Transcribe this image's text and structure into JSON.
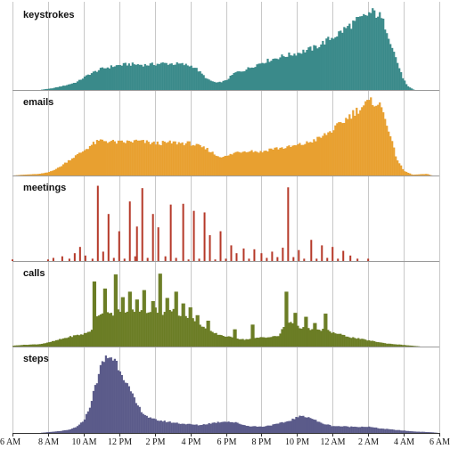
{
  "chart_data": {
    "type": "bar",
    "title": "",
    "xlabel": "",
    "ylabel": "",
    "grid": true,
    "x_unit": "hour_since_6am",
    "xlim": [
      0,
      24
    ],
    "x_tick_labels": [
      "6 AM",
      "8 AM",
      "10 AM",
      "12 PM",
      "2 PM",
      "4 PM",
      "6 PM",
      "8 PM",
      "10 PM",
      "12 AM",
      "2 AM",
      "4 AM",
      "6 AM"
    ],
    "panels": [
      {
        "name": "keystrokes",
        "color": "#3a8a8a",
        "ylim": [
          0,
          100
        ],
        "profile": [
          [
            0,
            0
          ],
          [
            1.5,
            0
          ],
          [
            2.2,
            2
          ],
          [
            3,
            6
          ],
          [
            3.6,
            10
          ],
          [
            4.3,
            20
          ],
          [
            5,
            27
          ],
          [
            5.8,
            31
          ],
          [
            6.5,
            33
          ],
          [
            7.5,
            32
          ],
          [
            8.5,
            34
          ],
          [
            9.5,
            33
          ],
          [
            10.2,
            30
          ],
          [
            11,
            13
          ],
          [
            11.5,
            9
          ],
          [
            12,
            12
          ],
          [
            12.5,
            22
          ],
          [
            13,
            25
          ],
          [
            14,
            35
          ],
          [
            15,
            42
          ],
          [
            16,
            47
          ],
          [
            17,
            54
          ],
          [
            17.6,
            62
          ],
          [
            18.2,
            70
          ],
          [
            18.7,
            78
          ],
          [
            19.2,
            86
          ],
          [
            19.7,
            92
          ],
          [
            20,
            97
          ],
          [
            20.3,
            99
          ],
          [
            20.6,
            96
          ],
          [
            21,
            80
          ],
          [
            21.5,
            45
          ],
          [
            21.9,
            18
          ],
          [
            22.2,
            5
          ],
          [
            22.6,
            0
          ],
          [
            24,
            0
          ]
        ]
      },
      {
        "name": "emails",
        "color": "#e8a030",
        "ylim": [
          0,
          100
        ],
        "profile": [
          [
            0,
            0
          ],
          [
            0.6,
            1
          ],
          [
            1.5,
            2
          ],
          [
            2,
            4
          ],
          [
            2.6,
            10
          ],
          [
            3.2,
            20
          ],
          [
            3.9,
            30
          ],
          [
            4.5,
            40
          ],
          [
            5,
            45
          ],
          [
            6,
            42
          ],
          [
            7,
            44
          ],
          [
            8,
            41
          ],
          [
            9,
            42
          ],
          [
            10,
            41
          ],
          [
            11,
            33
          ],
          [
            11.5,
            25
          ],
          [
            12,
            24
          ],
          [
            12.6,
            30
          ],
          [
            13.3,
            32
          ],
          [
            14,
            30
          ],
          [
            14.5,
            34
          ],
          [
            15.5,
            36
          ],
          [
            16.5,
            41
          ],
          [
            17.3,
            48
          ],
          [
            18,
            58
          ],
          [
            18.5,
            67
          ],
          [
            19,
            77
          ],
          [
            19.6,
            87
          ],
          [
            20,
            93
          ],
          [
            20.4,
            94
          ],
          [
            20.7,
            88
          ],
          [
            21,
            72
          ],
          [
            21.3,
            45
          ],
          [
            21.6,
            22
          ],
          [
            22,
            6
          ],
          [
            22.5,
            1
          ],
          [
            23.3,
            2
          ],
          [
            23.6,
            0
          ],
          [
            24,
            0
          ]
        ]
      },
      {
        "name": "meetings",
        "color": "#b53828",
        "ylim": [
          0,
          100
        ],
        "values": [
          [
            0,
            2
          ],
          [
            2,
            2
          ],
          [
            2.3,
            4
          ],
          [
            2.8,
            6
          ],
          [
            3.2,
            3
          ],
          [
            3.5,
            10
          ],
          [
            3.8,
            18
          ],
          [
            4.1,
            7
          ],
          [
            4.5,
            3
          ],
          [
            4.8,
            96
          ],
          [
            5.1,
            12
          ],
          [
            5.4,
            60
          ],
          [
            5.7,
            4
          ],
          [
            6,
            38
          ],
          [
            6.3,
            3
          ],
          [
            6.6,
            76
          ],
          [
            6.9,
            6
          ],
          [
            7,
            44
          ],
          [
            7.3,
            93
          ],
          [
            7.6,
            4
          ],
          [
            7.9,
            60
          ],
          [
            8.2,
            43
          ],
          [
            8.6,
            6
          ],
          [
            8.9,
            72
          ],
          [
            9.2,
            4
          ],
          [
            9.6,
            73
          ],
          [
            9.9,
            2
          ],
          [
            10.2,
            64
          ],
          [
            10.5,
            3
          ],
          [
            10.8,
            62
          ],
          [
            11.1,
            33
          ],
          [
            11.4,
            2
          ],
          [
            11.7,
            38
          ],
          [
            12,
            3
          ],
          [
            12.3,
            20
          ],
          [
            12.6,
            10
          ],
          [
            13,
            16
          ],
          [
            13.3,
            3
          ],
          [
            13.6,
            15
          ],
          [
            14,
            10
          ],
          [
            14.3,
            4
          ],
          [
            14.6,
            12
          ],
          [
            14.9,
            5
          ],
          [
            15.2,
            17
          ],
          [
            15.5,
            94
          ],
          [
            15.8,
            5
          ],
          [
            16.1,
            14
          ],
          [
            16.4,
            3
          ],
          [
            16.8,
            27
          ],
          [
            17.1,
            3
          ],
          [
            17.4,
            20
          ],
          [
            17.7,
            4
          ],
          [
            18,
            18
          ],
          [
            18.3,
            3
          ],
          [
            18.6,
            13
          ],
          [
            19,
            7
          ],
          [
            19.4,
            3
          ],
          [
            20,
            3
          ]
        ]
      },
      {
        "name": "calls",
        "color": "#6b7d25",
        "ylim": [
          0,
          100
        ],
        "profile": [
          [
            0,
            1
          ],
          [
            0.5,
            2
          ],
          [
            1.5,
            3
          ],
          [
            2,
            5
          ],
          [
            2.8,
            10
          ],
          [
            3.5,
            14
          ],
          [
            4,
            16
          ],
          [
            4.4,
            20
          ],
          [
            4.8,
            40
          ],
          [
            5.2,
            47
          ],
          [
            5.6,
            42
          ],
          [
            6,
            45
          ],
          [
            6.5,
            42
          ],
          [
            7,
            48
          ],
          [
            7.5,
            44
          ],
          [
            8,
            48
          ],
          [
            8.5,
            42
          ],
          [
            9,
            46
          ],
          [
            9.5,
            40
          ],
          [
            10,
            38
          ],
          [
            10.5,
            30
          ],
          [
            11,
            20
          ],
          [
            11.5,
            16
          ],
          [
            12,
            13
          ],
          [
            12.5,
            11
          ],
          [
            13,
            9
          ],
          [
            13.5,
            10
          ],
          [
            14,
            12
          ],
          [
            14.5,
            12
          ],
          [
            15,
            14
          ],
          [
            15.3,
            28
          ],
          [
            15.7,
            32
          ],
          [
            16,
            25
          ],
          [
            16.5,
            24
          ],
          [
            17,
            20
          ],
          [
            17.5,
            22
          ],
          [
            18,
            18
          ],
          [
            18.5,
            15
          ],
          [
            19,
            12
          ],
          [
            19.5,
            10
          ],
          [
            20,
            8
          ],
          [
            20.5,
            6
          ],
          [
            21,
            4
          ],
          [
            21.5,
            3
          ],
          [
            22,
            2
          ],
          [
            23,
            0
          ],
          [
            24,
            0
          ]
        ],
        "spikes": [
          [
            4.6,
            83
          ],
          [
            5.2,
            74
          ],
          [
            5.8,
            92
          ],
          [
            6.2,
            63
          ],
          [
            6.6,
            70
          ],
          [
            7,
            60
          ],
          [
            7.4,
            72
          ],
          [
            7.9,
            58
          ],
          [
            8.3,
            93
          ],
          [
            8.7,
            62
          ],
          [
            9.2,
            70
          ],
          [
            9.6,
            55
          ],
          [
            10,
            50
          ],
          [
            10.4,
            40
          ],
          [
            11,
            33
          ],
          [
            12.5,
            22
          ],
          [
            13.5,
            28
          ],
          [
            15.4,
            70
          ],
          [
            15.9,
            43
          ],
          [
            16.5,
            38
          ],
          [
            17,
            30
          ],
          [
            17.6,
            42
          ]
        ]
      },
      {
        "name": "steps",
        "color": "#5b5b8a",
        "ylim": [
          0,
          100
        ],
        "profile": [
          [
            0,
            0
          ],
          [
            1.5,
            0
          ],
          [
            2.5,
            2
          ],
          [
            3.2,
            4
          ],
          [
            3.7,
            9
          ],
          [
            4,
            16
          ],
          [
            4.3,
            30
          ],
          [
            4.6,
            55
          ],
          [
            4.9,
            80
          ],
          [
            5.2,
            95
          ],
          [
            5.5,
            98
          ],
          [
            5.8,
            92
          ],
          [
            6.2,
            75
          ],
          [
            6.6,
            54
          ],
          [
            7,
            36
          ],
          [
            7.4,
            24
          ],
          [
            7.8,
            18
          ],
          [
            8.5,
            15
          ],
          [
            9.5,
            12
          ],
          [
            10.5,
            10
          ],
          [
            11.3,
            13
          ],
          [
            12,
            15
          ],
          [
            12.6,
            13
          ],
          [
            13.2,
            9
          ],
          [
            14,
            8
          ],
          [
            14.8,
            11
          ],
          [
            15.5,
            15
          ],
          [
            16,
            20
          ],
          [
            16.4,
            22
          ],
          [
            16.8,
            19
          ],
          [
            17.3,
            13
          ],
          [
            18,
            9
          ],
          [
            19,
            8
          ],
          [
            20,
            8
          ],
          [
            20.6,
            6
          ],
          [
            21.5,
            4
          ],
          [
            22.5,
            2
          ],
          [
            23.5,
            1
          ],
          [
            24,
            0
          ]
        ]
      }
    ]
  }
}
